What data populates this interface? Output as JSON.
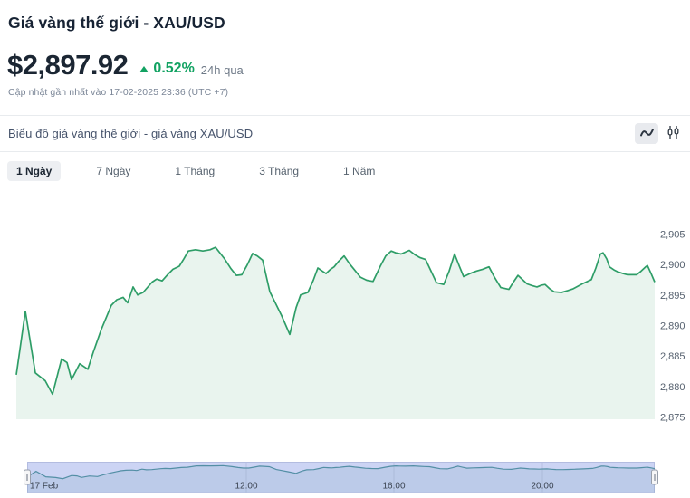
{
  "page": {
    "title": "Giá vàng thế giới - XAU/USD",
    "price": "$2,897.92",
    "change": {
      "direction": "up",
      "percent": "0.52%",
      "period": "24h qua"
    },
    "updated": "Cập nhật gần nhất vào 17-02-2025 23:36 (UTC +7)"
  },
  "chart_card": {
    "title": "Biểu đồ giá vàng thế giới - giá vàng XAU/USD",
    "view_toggles": [
      {
        "name": "line-chart",
        "selected": true
      },
      {
        "name": "candlestick-chart",
        "selected": false
      }
    ],
    "tabs": [
      {
        "label": "1 Ngày",
        "active": true
      },
      {
        "label": "7 Ngày",
        "active": false
      },
      {
        "label": "1 Tháng",
        "active": false
      },
      {
        "label": "3 Tháng",
        "active": false
      },
      {
        "label": "1 Năm",
        "active": false
      }
    ]
  },
  "chart_data": {
    "type": "area",
    "series_name": "XAU/USD",
    "title": "Biểu đồ giá vàng thế giới - giá vàng XAU/USD",
    "xlabel": "",
    "ylabel": "",
    "ylim": [
      2875,
      2905
    ],
    "grid": false,
    "legend": false,
    "y_ticks": [
      {
        "value": 2905,
        "label": "2,905"
      },
      {
        "value": 2900,
        "label": "2,900"
      },
      {
        "value": 2895,
        "label": "2,895"
      },
      {
        "value": 2890,
        "label": "2,890"
      },
      {
        "value": 2885,
        "label": "2,885"
      },
      {
        "value": 2880,
        "label": "2,880"
      },
      {
        "value": 2875,
        "label": "2,875"
      }
    ],
    "x_ticks": [
      {
        "label": "17 Feb",
        "x": 33,
        "anchor": "start"
      },
      {
        "label": "12:00",
        "x": 272,
        "anchor": "middle"
      },
      {
        "label": "16:00",
        "x": 435,
        "anchor": "middle"
      },
      {
        "label": "20:00",
        "x": 599,
        "anchor": "middle"
      }
    ],
    "points": [
      [
        18,
        2882.0
      ],
      [
        28,
        2892.4
      ],
      [
        39,
        2882.3
      ],
      [
        50,
        2881.0
      ],
      [
        58,
        2878.8
      ],
      [
        68,
        2884.6
      ],
      [
        74,
        2884.0
      ],
      [
        79,
        2881.2
      ],
      [
        88,
        2883.8
      ],
      [
        97,
        2882.9
      ],
      [
        103,
        2885.7
      ],
      [
        112,
        2889.5
      ],
      [
        123,
        2893.4
      ],
      [
        129,
        2894.3
      ],
      [
        136,
        2894.7
      ],
      [
        141,
        2893.8
      ],
      [
        147,
        2896.4
      ],
      [
        152,
        2895.1
      ],
      [
        158,
        2895.5
      ],
      [
        168,
        2897.2
      ],
      [
        173,
        2897.7
      ],
      [
        179,
        2897.4
      ],
      [
        185,
        2898.4
      ],
      [
        191,
        2899.3
      ],
      [
        198,
        2899.8
      ],
      [
        203,
        2901.0
      ],
      [
        208,
        2902.3
      ],
      [
        216,
        2902.5
      ],
      [
        224,
        2902.3
      ],
      [
        232,
        2902.5
      ],
      [
        238,
        2902.9
      ],
      [
        248,
        2901.0
      ],
      [
        255,
        2899.4
      ],
      [
        261,
        2898.3
      ],
      [
        267,
        2898.4
      ],
      [
        273,
        2900.0
      ],
      [
        279,
        2901.9
      ],
      [
        284,
        2901.5
      ],
      [
        290,
        2900.8
      ],
      [
        298,
        2895.6
      ],
      [
        304,
        2893.8
      ],
      [
        311,
        2891.7
      ],
      [
        320,
        2888.6
      ],
      [
        327,
        2893.0
      ],
      [
        332,
        2895.1
      ],
      [
        340,
        2895.5
      ],
      [
        346,
        2897.5
      ],
      [
        351,
        2899.5
      ],
      [
        356,
        2899.0
      ],
      [
        360,
        2898.6
      ],
      [
        365,
        2899.3
      ],
      [
        369,
        2899.7
      ],
      [
        374,
        2900.6
      ],
      [
        380,
        2901.5
      ],
      [
        386,
        2900.2
      ],
      [
        391,
        2899.3
      ],
      [
        398,
        2898.0
      ],
      [
        405,
        2897.5
      ],
      [
        412,
        2897.3
      ],
      [
        420,
        2899.8
      ],
      [
        426,
        2901.5
      ],
      [
        432,
        2902.3
      ],
      [
        437,
        2902.0
      ],
      [
        443,
        2901.8
      ],
      [
        452,
        2902.4
      ],
      [
        458,
        2901.7
      ],
      [
        464,
        2901.2
      ],
      [
        470,
        2900.9
      ],
      [
        476,
        2899.0
      ],
      [
        482,
        2897.1
      ],
      [
        490,
        2896.8
      ],
      [
        496,
        2899.0
      ],
      [
        502,
        2901.8
      ],
      [
        507,
        2899.9
      ],
      [
        512,
        2898.1
      ],
      [
        519,
        2898.6
      ],
      [
        526,
        2899.0
      ],
      [
        533,
        2899.3
      ],
      [
        540,
        2899.7
      ],
      [
        546,
        2898.0
      ],
      [
        553,
        2896.3
      ],
      [
        562,
        2896.0
      ],
      [
        567,
        2897.2
      ],
      [
        572,
        2898.3
      ],
      [
        577,
        2897.6
      ],
      [
        582,
        2896.9
      ],
      [
        588,
        2896.6
      ],
      [
        593,
        2896.4
      ],
      [
        598,
        2896.7
      ],
      [
        602,
        2896.8
      ],
      [
        607,
        2896.1
      ],
      [
        612,
        2895.6
      ],
      [
        620,
        2895.5
      ],
      [
        627,
        2895.8
      ],
      [
        633,
        2896.1
      ],
      [
        643,
        2896.9
      ],
      [
        653,
        2897.6
      ],
      [
        658,
        2899.5
      ],
      [
        663,
        2901.8
      ],
      [
        666,
        2902.0
      ],
      [
        670,
        2901.0
      ],
      [
        673,
        2899.7
      ],
      [
        678,
        2899.2
      ],
      [
        682,
        2898.9
      ],
      [
        688,
        2898.6
      ],
      [
        693,
        2898.4
      ],
      [
        703,
        2898.4
      ],
      [
        708,
        2899.0
      ],
      [
        713,
        2899.7
      ],
      [
        715,
        2899.9
      ],
      [
        719,
        2898.6
      ],
      [
        723,
        2897.2
      ]
    ],
    "navigator": {
      "range": "full",
      "labels": [
        "17 Feb",
        "12:00",
        "16:00",
        "20:00"
      ]
    }
  },
  "theme": {
    "text_dark": "#1b2633",
    "text_muted": "#6e7987",
    "accent_green": "#12a262",
    "line_green": "#2e9d67",
    "area_fill": "#e9f4ee",
    "nav_band": "#ccd4f4",
    "nav_band_border": "#b3bce0",
    "nav_grid": "#b9c1e2",
    "nav_line": "#538fa5",
    "nav_area": "rgba(83,143,165,0.13)",
    "divider": "#e8ebee"
  }
}
